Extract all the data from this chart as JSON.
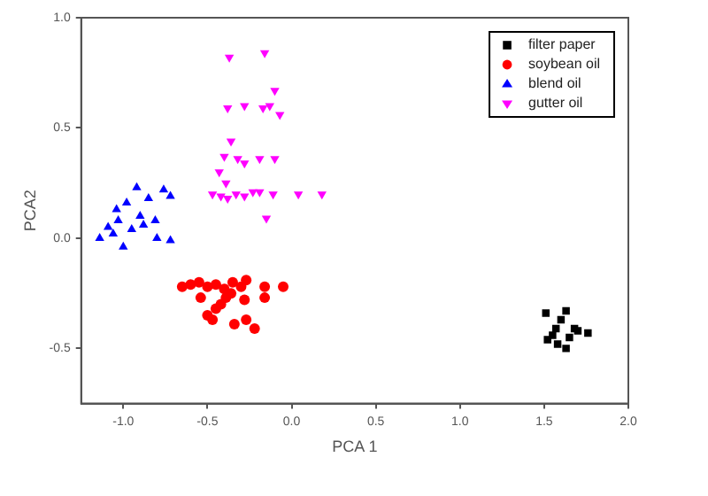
{
  "chart_data": {
    "type": "scatter",
    "xlabel": "PCA 1",
    "ylabel": "PCA2",
    "xlim": [
      -1.25,
      2.0
    ],
    "xticks": [
      {
        "value": -1,
        "label": "-1.0"
      },
      -0.5,
      {
        "value": 0,
        "label": "0.0"
      },
      0.5,
      {
        "value": 1,
        "label": "1.0"
      },
      1.5,
      {
        "value": 2,
        "label": "2.0"
      }
    ],
    "ylim": [
      -0.75,
      1.0
    ],
    "yticks": [
      -0.5,
      {
        "value": 0,
        "label": "0.0"
      },
      0.5,
      {
        "value": 1,
        "label": "1.0"
      }
    ],
    "grid": false,
    "legend": "top right",
    "series": [
      {
        "name": "filter paper",
        "color": "#000000",
        "marker": "square",
        "x": [
          1.51,
          1.63,
          1.76,
          1.63,
          1.52,
          1.57,
          1.68,
          1.6,
          1.55,
          1.65,
          1.7,
          1.58
        ],
        "values": [
          -0.34,
          -0.33,
          -0.43,
          -0.5,
          -0.46,
          -0.41,
          -0.41,
          -0.37,
          -0.44,
          -0.45,
          -0.42,
          -0.48
        ]
      },
      {
        "name": "soybean oil",
        "color": "#ff0000",
        "marker": "circle",
        "x": [
          -0.65,
          -0.6,
          -0.55,
          -0.5,
          -0.45,
          -0.4,
          -0.35,
          -0.3,
          -0.05,
          -0.27,
          -0.54,
          -0.5,
          -0.47,
          -0.34,
          -0.22,
          -0.27,
          -0.16,
          -0.28,
          -0.39,
          -0.16,
          -0.45,
          -0.42,
          -0.36
        ],
        "values": [
          -0.22,
          -0.21,
          -0.2,
          -0.22,
          -0.21,
          -0.23,
          -0.2,
          -0.22,
          -0.22,
          -0.19,
          -0.27,
          -0.35,
          -0.37,
          -0.39,
          -0.41,
          -0.37,
          -0.27,
          -0.28,
          -0.27,
          -0.22,
          -0.32,
          -0.3,
          -0.25
        ]
      },
      {
        "name": "blend oil",
        "color": "#0000ff",
        "marker": "triangle",
        "x": [
          -0.92,
          -0.76,
          -0.72,
          -0.85,
          -0.98,
          -1.04,
          -1.09,
          -1.14,
          -1.0,
          -0.72,
          -0.8,
          -0.88,
          -0.81,
          -1.03,
          -0.95,
          -1.06,
          -0.9
        ],
        "values": [
          0.23,
          0.22,
          0.19,
          0.18,
          0.16,
          0.13,
          0.05,
          0.0,
          -0.04,
          -0.01,
          0.0,
          0.06,
          0.08,
          0.08,
          0.04,
          0.02,
          0.1
        ]
      },
      {
        "name": "gutter oil",
        "color": "#ff00ff",
        "marker": "triangle-down",
        "x": [
          -0.37,
          -0.16,
          -0.1,
          -0.38,
          -0.28,
          -0.17,
          -0.13,
          -0.07,
          -0.36,
          -0.4,
          -0.32,
          -0.28,
          -0.19,
          -0.1,
          -0.43,
          -0.39,
          -0.47,
          -0.42,
          -0.38,
          -0.33,
          -0.28,
          -0.23,
          -0.19,
          -0.11,
          0.04,
          0.18,
          -0.15
        ],
        "values": [
          0.82,
          0.84,
          0.67,
          0.59,
          0.6,
          0.59,
          0.6,
          0.56,
          0.44,
          0.37,
          0.36,
          0.34,
          0.36,
          0.36,
          0.3,
          0.25,
          0.2,
          0.19,
          0.18,
          0.2,
          0.19,
          0.21,
          0.21,
          0.2,
          0.2,
          0.2,
          0.09
        ]
      }
    ]
  }
}
